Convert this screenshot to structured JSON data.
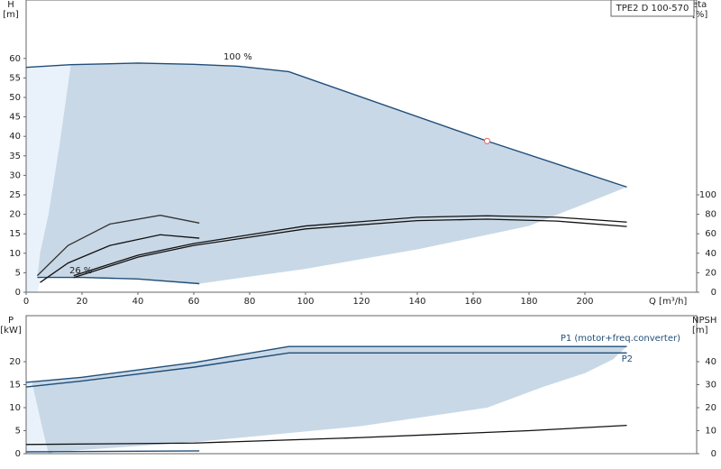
{
  "title": "TPE2 D 100-570",
  "chart_data": [
    {
      "type": "line",
      "y_label": "H",
      "y_unit": "[m]",
      "y2_label": "eta",
      "y2_unit": "[%]",
      "x_label": "Q [m³/h]",
      "xlim": [
        0,
        240
      ],
      "xticks": [
        0,
        20,
        40,
        60,
        80,
        100,
        120,
        140,
        160,
        180,
        200
      ],
      "ylim": [
        0,
        75
      ],
      "yticks": [
        0,
        5,
        10,
        15,
        20,
        25,
        30,
        35,
        40,
        45,
        50,
        55,
        60
      ],
      "y2lim": [
        0,
        300
      ],
      "y2ticks": [
        0,
        20,
        40,
        60,
        80,
        100
      ],
      "regions": [
        {
          "color": "#e9f2fb",
          "x": [
            0,
            0,
            16,
            12,
            8,
            5,
            4
          ],
          "values": [
            0,
            57.7,
            58.4,
            35,
            15,
            3,
            0
          ]
        },
        {
          "color": "#c9d8e6",
          "x": [
            16,
            40,
            60,
            76,
            94,
            165,
            215,
            180,
            140,
            100,
            62,
            40,
            20,
            4,
            5,
            8,
            12
          ],
          "values": [
            58.4,
            58.8,
            58.5,
            58,
            56.6,
            38.8,
            27,
            17,
            11,
            6,
            2.2,
            3.4,
            3.8,
            3.8,
            10,
            20,
            38
          ]
        }
      ],
      "series": [
        {
          "name": "100 %",
          "color": "#1f4e79",
          "x": [
            0,
            16,
            40,
            60,
            76,
            94,
            165,
            215
          ],
          "values": [
            57.7,
            58.4,
            58.8,
            58.5,
            58,
            56.6,
            38.8,
            27
          ]
        },
        {
          "name": "26 %",
          "color": "#1f4e79",
          "x": [
            4,
            20,
            40,
            62
          ],
          "values": [
            3.8,
            3.8,
            3.4,
            2.2
          ]
        },
        {
          "color": "#111",
          "axis": "y2",
          "x": [
            17,
            40,
            60,
            100,
            140,
            165,
            190,
            215
          ],
          "values": [
            17,
            38,
            50,
            68,
            77,
            78.5,
            77,
            72
          ]
        },
        {
          "color": "#111",
          "axis": "y2",
          "x": [
            17,
            40,
            60,
            100,
            140,
            165,
            190,
            215
          ],
          "values": [
            15,
            36,
            48,
            65,
            73.5,
            75,
            73,
            67.5
          ]
        },
        {
          "color": "#111",
          "axis": "y2",
          "x": [
            5,
            15,
            30,
            48,
            62
          ],
          "values": [
            10,
            30,
            48,
            59,
            55.5
          ]
        },
        {
          "color": "#333",
          "axis": "y2",
          "x": [
            4,
            15,
            30,
            48,
            62
          ],
          "values": [
            17,
            48,
            70,
            79,
            71
          ]
        }
      ],
      "points": [
        {
          "x": 165,
          "y": 38.8,
          "color": "#e06666"
        }
      ]
    },
    {
      "type": "line",
      "y_label": "P",
      "y_unit": "[kW]",
      "y2_label": "NPSH",
      "y2_unit": "[m]",
      "xlim": [
        0,
        240
      ],
      "ylim": [
        0,
        30
      ],
      "yticks": [
        0,
        5,
        10,
        15,
        20
      ],
      "y2lim": [
        0,
        60
      ],
      "y2ticks": [
        0,
        10,
        20,
        30,
        40
      ],
      "regions": [
        {
          "color": "#e9f2fb",
          "x": [
            0,
            0,
            2,
            6,
            8
          ],
          "values": [
            0,
            15.5,
            15.7,
            5,
            0
          ]
        },
        {
          "color": "#c9d8e6",
          "x": [
            2,
            20,
            60,
            94,
            215,
            210,
            200,
            185,
            165,
            120,
            60,
            20,
            10,
            8,
            6
          ],
          "values": [
            15.7,
            16.6,
            19.8,
            23.3,
            23.3,
            20.5,
            17.5,
            14.5,
            10,
            6,
            2.5,
            0.8,
            0.3,
            0,
            5
          ]
        }
      ],
      "series": [
        {
          "name": "P1 (motor+freq.converter)",
          "color": "#1f4e79",
          "x": [
            0,
            20,
            60,
            94,
            215
          ],
          "values": [
            15.5,
            16.6,
            19.8,
            23.3,
            23.3
          ]
        },
        {
          "name": "P2",
          "color": "#1f4e79",
          "x": [
            0,
            20,
            60,
            94,
            215
          ],
          "values": [
            14.5,
            15.8,
            18.8,
            21.9,
            21.9
          ]
        },
        {
          "color": "#111",
          "axis": "y2",
          "x": [
            0,
            60,
            120,
            180,
            215
          ],
          "values": [
            4,
            4.6,
            7,
            10,
            12.3
          ]
        },
        {
          "color": "#1f4e79",
          "x": [
            0,
            62
          ],
          "values": [
            0.4,
            0.6
          ]
        }
      ]
    }
  ]
}
